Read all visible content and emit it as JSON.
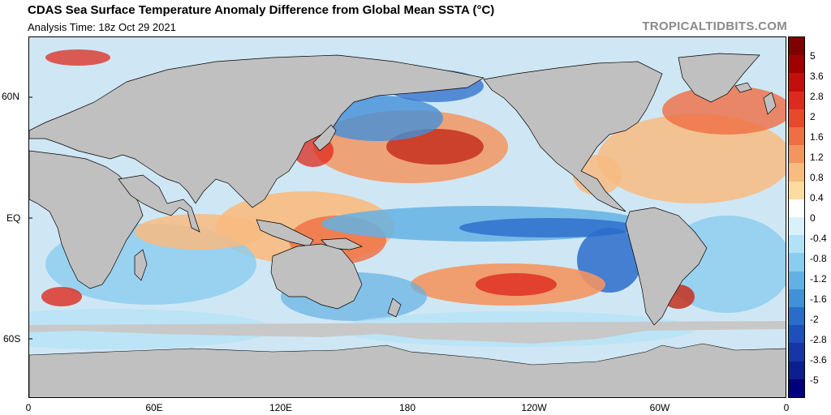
{
  "header": {
    "title": "CDAS Sea Surface Temperature Anomaly Difference from Global Mean SSTA (°C)",
    "analysis_time": "Analysis Time: 18z Oct 29 2021",
    "site": "TROPICALTIDBITS.COM"
  },
  "map": {
    "lat_labels": [
      "60N",
      "EQ",
      "60S"
    ],
    "lon_labels": [
      "0",
      "60E",
      "120E",
      "180",
      "120W",
      "60W",
      "0"
    ]
  },
  "colorbar": {
    "labels": [
      "5",
      "3.6",
      "2.8",
      "2",
      "1.6",
      "1.2",
      "0.8",
      "0.4",
      "0",
      "-0.4",
      "-0.8",
      "-1.2",
      "-1.6",
      "-2",
      "-2.8",
      "-3.6",
      "-5"
    ],
    "colors": [
      "#7f0000",
      "#a00000",
      "#c40d0d",
      "#dd2a1e",
      "#e8492c",
      "#ef6e43",
      "#f39560",
      "#f8bb80",
      "#fcdca0",
      "#ffffff",
      "#d9f1fb",
      "#b2e2f6",
      "#89cdef",
      "#63b1e4",
      "#4290d8",
      "#2b6ccb",
      "#1e4fbd",
      "#1636a8",
      "#0d1f8f",
      "#00007a"
    ]
  },
  "colors": {
    "land": "#c0c0c0",
    "coast": "#000000",
    "ice": "#c8c8c8"
  }
}
